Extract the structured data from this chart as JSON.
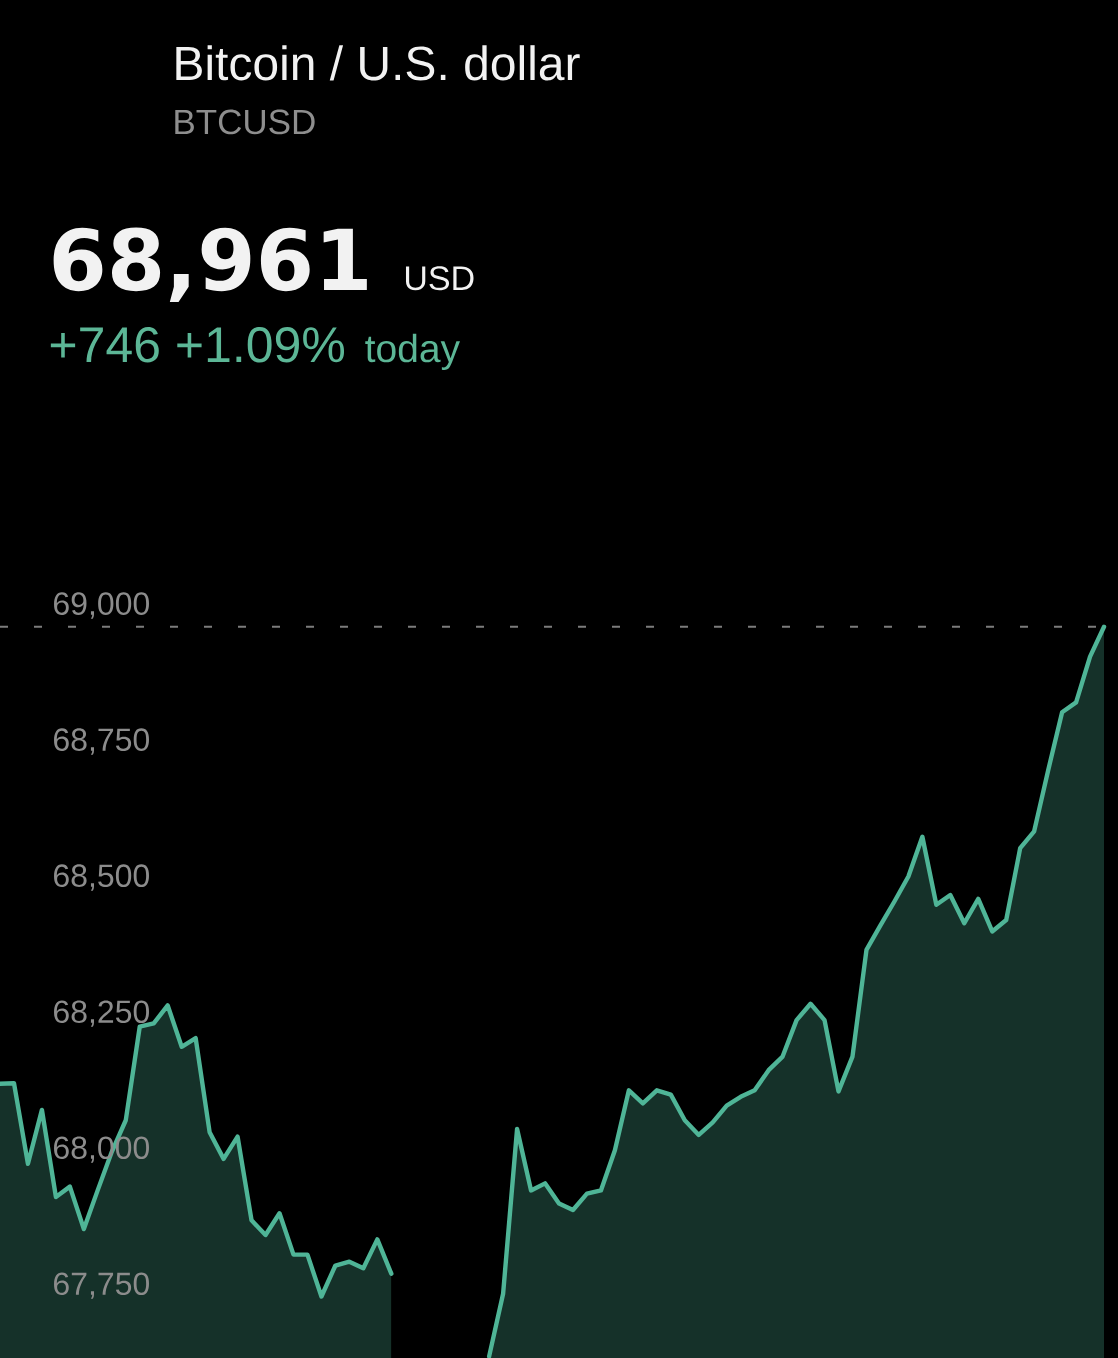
{
  "chart_data": {
    "type": "area",
    "title": "Bitcoin / U.S. dollar",
    "subtitle": "BTCUSD",
    "annotations": [
      "68,961",
      "USD",
      "+746 +1.09%",
      "today"
    ],
    "categories": [
      null,
      null,
      null,
      null,
      null,
      null,
      null,
      null,
      null,
      null,
      null,
      null,
      null,
      null,
      null,
      null,
      null,
      null,
      null,
      null,
      null,
      null,
      null,
      null,
      null,
      null,
      null,
      null,
      null,
      null,
      null,
      null,
      null,
      null,
      null,
      null,
      null,
      null,
      null,
      null,
      null,
      null,
      null,
      null,
      null,
      null,
      null,
      null,
      null,
      null,
      null,
      null,
      null,
      null,
      null,
      null,
      null,
      null,
      null,
      null,
      null,
      null,
      null,
      null,
      null,
      null,
      null,
      null,
      null,
      null,
      null,
      null,
      null,
      null,
      null,
      null,
      null,
      null,
      null,
      null
    ],
    "series": [
      {
        "color": "#4fb597",
        "values": [
          68121,
          68122,
          67974,
          68073,
          67913,
          67932,
          67854,
          67926,
          67996,
          68054,
          68226,
          68232,
          68265,
          68189,
          68205,
          68032,
          67983,
          68024,
          67870,
          67843,
          67883,
          67807,
          67807,
          67730,
          67787,
          67794,
          67782,
          67835,
          67772,
          null,
          null,
          null,
          null,
          null,
          null,
          null,
          null,
          null,
          null,
          null,
          null,
          null,
          null,
          null,
          null,
          null,
          null,
          null,
          null,
          null,
          null,
          null,
          null,
          null,
          null,
          null,
          null,
          null,
          null,
          null,
          null,
          null,
          null,
          null,
          null,
          null,
          null,
          null,
          null,
          null,
          null,
          null,
          null,
          null,
          null,
          null,
          null,
          null,
          null,
          null
        ]
      },
      {
        "color": "#4fb597",
        "values": [
          null,
          null,
          null,
          null,
          null,
          null,
          null,
          null,
          null,
          null,
          null,
          null,
          null,
          null,
          null,
          null,
          null,
          null,
          null,
          null,
          null,
          null,
          null,
          null,
          null,
          null,
          null,
          null,
          null,
          null,
          null,
          null,
          null,
          null,
          null,
          67620,
          67735,
          68038,
          67925,
          67938,
          67901,
          67889,
          67919,
          67925,
          67999,
          68109,
          68085,
          68109,
          68101,
          68054,
          68027,
          68050,
          68081,
          68097,
          68109,
          68146,
          68171,
          68238,
          68268,
          68238,
          68107,
          68171,
          68367,
          68412,
          68456,
          68502,
          68575,
          68450,
          68468,
          68416,
          68461,
          68401,
          68422,
          68554,
          68585,
          68697,
          68804,
          68822,
          68906,
          68961
        ]
      }
    ],
    "ylim": [
      67617,
      70113
    ],
    "yticks": [
      {
        "value": 67750,
        "label": "67,750"
      },
      {
        "value": 68000,
        "label": "68,000"
      },
      {
        "value": 68250,
        "label": "68,250"
      },
      {
        "value": 68500,
        "label": "68,500"
      },
      {
        "value": 68750,
        "label": "68,750"
      },
      {
        "value": 69000,
        "label": "69,000"
      }
    ],
    "ref_lines": [
      {
        "axis": "y",
        "value": 68961,
        "color": "#7c7c7c",
        "line_style": "dashed"
      }
    ],
    "tick_labels": "y"
  }
}
